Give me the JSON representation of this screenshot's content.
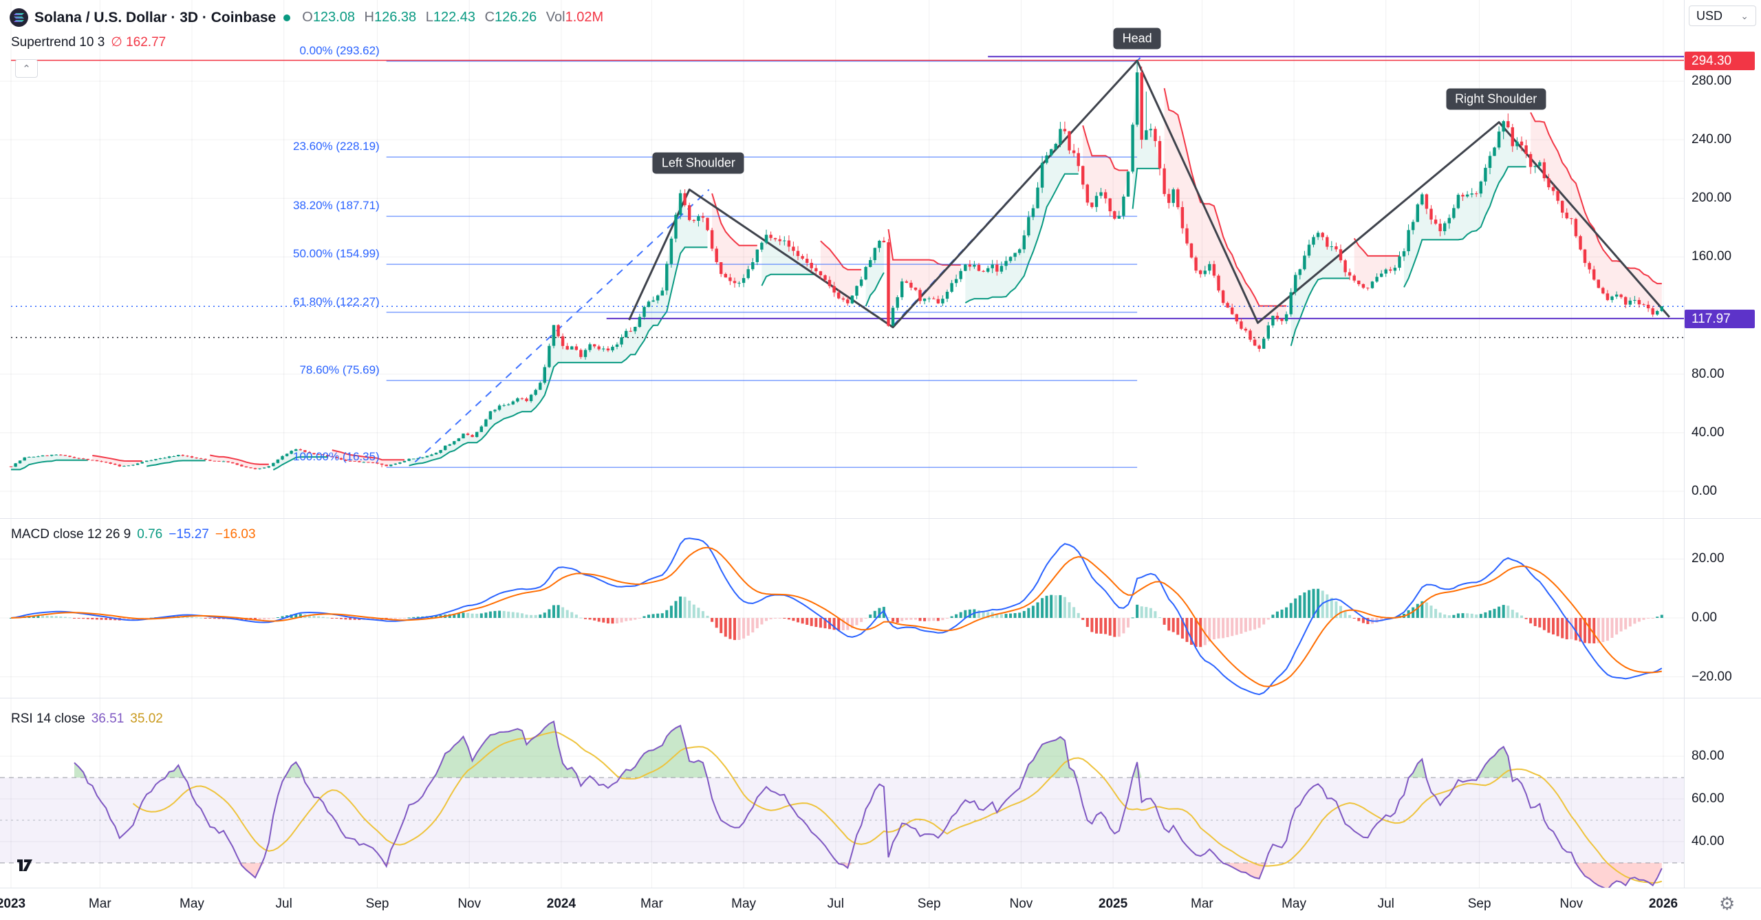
{
  "header": {
    "symbol_title": "Solana / U.S. Dollar · 3D · Coinbase",
    "ohlc": {
      "o_label": "O",
      "o_value": "123.08",
      "h_label": "H",
      "h_value": "126.38",
      "l_label": "L",
      "l_value": "122.43",
      "c_label": "C",
      "c_value": "126.26",
      "vol_label": "Vol",
      "vol_value": "1.02M"
    },
    "supertrend_label": "Supertrend 10 3",
    "supertrend_value": "∅ 162.77"
  },
  "icons": {
    "collapse_chevron": "⌃",
    "usd_caret": "⌄",
    "gear": "⚙"
  },
  "macd_panel": {
    "label": "MACD close 12 26 9",
    "hist_value": "0.76",
    "macd_value": "−15.27",
    "signal_value": "−16.03"
  },
  "rsi_panel": {
    "label": "RSI 14 close",
    "rsi_value": "36.51",
    "ma_value": "35.02"
  },
  "price_axis": {
    "currency": "USD",
    "ticks": [
      {
        "label": "280.00",
        "price": 280
      },
      {
        "label": "240.00",
        "price": 240
      },
      {
        "label": "200.00",
        "price": 200
      },
      {
        "label": "160.00",
        "price": 160
      },
      {
        "label": "80.00",
        "price": 80
      },
      {
        "label": "40.00",
        "price": 40
      },
      {
        "label": "0.00",
        "price": 0
      }
    ],
    "badges": [
      {
        "label": "294.30",
        "price": 294.3,
        "color": "#f23645"
      },
      {
        "label": "117.97",
        "price": 117.97,
        "color": "#5d33c9"
      }
    ]
  },
  "macd_axis": {
    "ticks": [
      {
        "label": "20.00",
        "v": 20
      },
      {
        "label": "0.00",
        "v": 0
      },
      {
        "label": "−20.00",
        "v": -20
      }
    ]
  },
  "rsi_axis": {
    "ticks": [
      {
        "label": "80.00",
        "v": 80
      },
      {
        "label": "60.00",
        "v": 60
      },
      {
        "label": "40.00",
        "v": 40
      }
    ]
  },
  "time_axis": {
    "labels": [
      {
        "label": "2023",
        "day": 0,
        "bold": true
      },
      {
        "label": "Mar",
        "day": 59
      },
      {
        "label": "May",
        "day": 120
      },
      {
        "label": "Jul",
        "day": 181
      },
      {
        "label": "Sep",
        "day": 243
      },
      {
        "label": "Nov",
        "day": 304
      },
      {
        "label": "2024",
        "day": 365,
        "bold": true
      },
      {
        "label": "Mar",
        "day": 425
      },
      {
        "label": "May",
        "day": 486
      },
      {
        "label": "Jul",
        "day": 547
      },
      {
        "label": "Sep",
        "day": 609
      },
      {
        "label": "Nov",
        "day": 670
      },
      {
        "label": "2025",
        "day": 731,
        "bold": true
      },
      {
        "label": "Mar",
        "day": 790
      },
      {
        "label": "May",
        "day": 851
      },
      {
        "label": "Jul",
        "day": 912
      },
      {
        "label": "Sep",
        "day": 974
      },
      {
        "label": "Nov",
        "day": 1035
      },
      {
        "label": "2026",
        "day": 1096,
        "bold": true
      }
    ]
  },
  "patterns": [
    {
      "label": "Left Shoulder",
      "day": 456,
      "price": 224
    },
    {
      "label": "Head",
      "day": 747,
      "price": 309
    },
    {
      "label": "Right Shoulder",
      "day": 985,
      "price": 268
    }
  ],
  "colors": {
    "up": "#089981",
    "down": "#f23645",
    "macd_line": "#2962ff",
    "signal_line": "#ff6d00",
    "rsi_line": "#7e57c2",
    "rsi_ma": "#eec33c",
    "fib": "#2962ff",
    "pattern": "#3f434c",
    "grid": "rgba(42,46,57,0.07)"
  },
  "chart_data": {
    "type": "candlestick",
    "symbol": "SOLUSD",
    "exchange": "Coinbase",
    "interval": "3D",
    "x_range_days": [
      0,
      1096
    ],
    "price_ylim": [
      0,
      300
    ],
    "last_candle": {
      "o": 123.08,
      "h": 126.38,
      "l": 122.43,
      "c": 126.26
    },
    "price_anchors": [
      [
        0,
        17
      ],
      [
        9,
        23
      ],
      [
        18,
        24
      ],
      [
        30,
        25
      ],
      [
        42,
        23
      ],
      [
        54,
        21
      ],
      [
        66,
        19
      ],
      [
        72,
        17
      ],
      [
        81,
        18
      ],
      [
        90,
        21
      ],
      [
        102,
        23
      ],
      [
        112,
        25
      ],
      [
        120,
        23
      ],
      [
        132,
        21
      ],
      [
        144,
        20
      ],
      [
        153,
        17
      ],
      [
        162,
        15
      ],
      [
        171,
        17
      ],
      [
        180,
        24
      ],
      [
        189,
        29
      ],
      [
        198,
        26
      ],
      [
        210,
        24
      ],
      [
        222,
        21
      ],
      [
        231,
        20
      ],
      [
        243,
        19
      ],
      [
        249,
        17
      ],
      [
        255,
        19
      ],
      [
        264,
        22
      ],
      [
        273,
        23
      ],
      [
        282,
        26
      ],
      [
        288,
        31
      ],
      [
        294,
        34
      ],
      [
        300,
        39
      ],
      [
        306,
        37
      ],
      [
        312,
        44
      ],
      [
        318,
        54
      ],
      [
        324,
        58
      ],
      [
        330,
        59
      ],
      [
        336,
        64
      ],
      [
        342,
        62
      ],
      [
        348,
        70
      ],
      [
        352,
        75
      ],
      [
        356,
        95
      ],
      [
        360,
        112
      ],
      [
        364,
        104
      ],
      [
        368,
        96
      ],
      [
        372,
        99
      ],
      [
        378,
        93
      ],
      [
        384,
        101
      ],
      [
        390,
        98
      ],
      [
        396,
        96
      ],
      [
        402,
        100
      ],
      [
        408,
        109
      ],
      [
        414,
        111
      ],
      [
        420,
        127
      ],
      [
        426,
        131
      ],
      [
        432,
        139
      ],
      [
        436,
        158
      ],
      [
        440,
        186
      ],
      [
        444,
        202
      ],
      [
        448,
        194
      ],
      [
        452,
        181
      ],
      [
        456,
        190
      ],
      [
        460,
        183
      ],
      [
        464,
        170
      ],
      [
        468,
        158
      ],
      [
        472,
        148
      ],
      [
        478,
        143
      ],
      [
        484,
        140
      ],
      [
        490,
        153
      ],
      [
        496,
        166
      ],
      [
        502,
        176
      ],
      [
        508,
        174
      ],
      [
        514,
        169
      ],
      [
        520,
        163
      ],
      [
        526,
        158
      ],
      [
        532,
        152
      ],
      [
        538,
        145
      ],
      [
        544,
        138
      ],
      [
        550,
        132
      ],
      [
        556,
        128
      ],
      [
        562,
        141
      ],
      [
        568,
        154
      ],
      [
        574,
        166
      ],
      [
        578,
        176
      ],
      [
        580,
        160
      ],
      [
        582,
        114
      ],
      [
        585,
        126
      ],
      [
        588,
        134
      ],
      [
        592,
        144
      ],
      [
        596,
        141
      ],
      [
        600,
        136
      ],
      [
        604,
        130
      ],
      [
        608,
        130
      ],
      [
        612,
        130
      ],
      [
        616,
        129
      ],
      [
        620,
        135
      ],
      [
        625,
        143
      ],
      [
        630,
        151
      ],
      [
        635,
        155
      ],
      [
        640,
        152
      ],
      [
        645,
        150
      ],
      [
        650,
        155
      ],
      [
        655,
        151
      ],
      [
        660,
        156
      ],
      [
        665,
        164
      ],
      [
        670,
        168
      ],
      [
        675,
        188
      ],
      [
        680,
        199
      ],
      [
        684,
        222
      ],
      [
        688,
        236
      ],
      [
        692,
        231
      ],
      [
        696,
        247
      ],
      [
        700,
        242
      ],
      [
        704,
        230
      ],
      [
        708,
        222
      ],
      [
        712,
        206
      ],
      [
        716,
        192
      ],
      [
        720,
        199
      ],
      [
        724,
        203
      ],
      [
        728,
        193
      ],
      [
        732,
        188
      ],
      [
        736,
        190
      ],
      [
        740,
        212
      ],
      [
        743,
        238
      ],
      [
        746,
        270
      ],
      [
        749,
        287
      ],
      [
        752,
        240
      ],
      [
        755,
        251
      ],
      [
        758,
        241
      ],
      [
        761,
        228
      ],
      [
        764,
        204
      ],
      [
        767,
        196
      ],
      [
        770,
        207
      ],
      [
        773,
        199
      ],
      [
        776,
        184
      ],
      [
        779,
        172
      ],
      [
        782,
        163
      ],
      [
        785,
        152
      ],
      [
        788,
        146
      ],
      [
        791,
        150
      ],
      [
        794,
        158
      ],
      [
        797,
        151
      ],
      [
        800,
        141
      ],
      [
        804,
        130
      ],
      [
        808,
        123
      ],
      [
        812,
        117
      ],
      [
        816,
        112
      ],
      [
        820,
        107
      ],
      [
        824,
        101
      ],
      [
        827,
        96
      ],
      [
        830,
        103
      ],
      [
        834,
        113
      ],
      [
        838,
        120
      ],
      [
        842,
        117
      ],
      [
        846,
        120
      ],
      [
        851,
        147
      ],
      [
        855,
        151
      ],
      [
        859,
        162
      ],
      [
        863,
        173
      ],
      [
        867,
        176
      ],
      [
        871,
        170
      ],
      [
        875,
        168
      ],
      [
        879,
        164
      ],
      [
        883,
        154
      ],
      [
        887,
        148
      ],
      [
        891,
        144
      ],
      [
        895,
        140
      ],
      [
        899,
        137
      ],
      [
        903,
        143
      ],
      [
        907,
        147
      ],
      [
        912,
        152
      ],
      [
        916,
        148
      ],
      [
        920,
        160
      ],
      [
        924,
        165
      ],
      [
        928,
        180
      ],
      [
        932,
        192
      ],
      [
        936,
        201
      ],
      [
        940,
        190
      ],
      [
        944,
        183
      ],
      [
        948,
        178
      ],
      [
        952,
        186
      ],
      [
        956,
        192
      ],
      [
        960,
        201
      ],
      [
        964,
        204
      ],
      [
        968,
        201
      ],
      [
        972,
        205
      ],
      [
        976,
        212
      ],
      [
        980,
        224
      ],
      [
        984,
        233
      ],
      [
        988,
        246
      ],
      [
        991,
        251
      ],
      [
        994,
        243
      ],
      [
        997,
        236
      ],
      [
        1000,
        240
      ],
      [
        1003,
        234
      ],
      [
        1006,
        226
      ],
      [
        1009,
        220
      ],
      [
        1012,
        223
      ],
      [
        1015,
        221
      ],
      [
        1018,
        214
      ],
      [
        1021,
        207
      ],
      [
        1024,
        200
      ],
      [
        1027,
        194
      ],
      [
        1030,
        190
      ],
      [
        1033,
        188
      ],
      [
        1036,
        184
      ],
      [
        1039,
        170
      ],
      [
        1042,
        162
      ],
      [
        1045,
        156
      ],
      [
        1048,
        147
      ],
      [
        1051,
        141
      ],
      [
        1054,
        137
      ],
      [
        1057,
        134
      ],
      [
        1060,
        130
      ],
      [
        1063,
        133
      ],
      [
        1066,
        136
      ],
      [
        1069,
        129
      ],
      [
        1072,
        127
      ],
      [
        1075,
        131
      ],
      [
        1078,
        133
      ],
      [
        1081,
        126
      ],
      [
        1084,
        129
      ],
      [
        1087,
        123
      ],
      [
        1090,
        121
      ],
      [
        1093,
        124
      ],
      [
        1095,
        126
      ]
    ],
    "key_points": {
      "left_shoulder": {
        "day": 450,
        "price": 206
      },
      "head": {
        "day": 747,
        "price": 293.62
      },
      "right_shoulder": {
        "day": 987,
        "price": 252
      },
      "troughs": [
        {
          "day": 585,
          "price": 112
        },
        {
          "day": 827,
          "price": 96
        }
      ]
    },
    "pattern_lines": [
      [
        410,
        117
      ],
      [
        450,
        206
      ],
      [
        585,
        112
      ],
      [
        747,
        294
      ],
      [
        827,
        115
      ],
      [
        987,
        252
      ],
      [
        1100,
        119
      ]
    ],
    "trend_lines": [
      [
        [
          268,
          20
        ],
        [
          463,
          206
        ]
      ],
      [
        [
          585,
          113
        ],
        [
          749,
          296
        ]
      ]
    ],
    "horizontal_lines": [
      {
        "price": 294.3,
        "color": "#f23645",
        "style": "solid",
        "from_day": 0,
        "width": 1.5
      },
      {
        "price": 296.8,
        "color": "#5d33c9",
        "style": "solid",
        "from_day": 648,
        "width": 2
      },
      {
        "price": 117.97,
        "color": "#5d33c9",
        "style": "solid",
        "from_day": 395,
        "width": 2
      },
      {
        "price": 126.26,
        "color": "#2962ff",
        "style": "dotted",
        "from_day": 0,
        "width": 1.5
      },
      {
        "price": 105.0,
        "color": "#131722",
        "style": "dotted",
        "from_day": 0,
        "width": 1.5
      }
    ],
    "fib": {
      "x_from_day": 249,
      "x_to_day": 747,
      "levels": [
        {
          "label": "0.00% (293.62)",
          "price": 293.62
        },
        {
          "label": "23.60% (228.19)",
          "price": 228.19
        },
        {
          "label": "38.20% (187.71)",
          "price": 187.71
        },
        {
          "label": "50.00% (154.99)",
          "price": 154.99
        },
        {
          "label": "61.80% (122.27)",
          "price": 122.27
        },
        {
          "label": "78.60% (75.69)",
          "price": 75.69
        },
        {
          "label": "100.00% (16.35)",
          "price": 16.35
        }
      ]
    },
    "supertrend": {
      "period": 10,
      "multiplier": 3,
      "current": 162.77
    },
    "macd": {
      "fast": 12,
      "slow": 26,
      "signal": 9,
      "ylim": [
        -30,
        30
      ],
      "current": {
        "hist": 0.76,
        "macd": -15.27,
        "signal": -16.03
      }
    },
    "rsi": {
      "period": 14,
      "current": 36.51,
      "ma_current": 35.02,
      "bands": [
        70,
        50,
        30
      ],
      "ylim": [
        0,
        100
      ]
    }
  }
}
